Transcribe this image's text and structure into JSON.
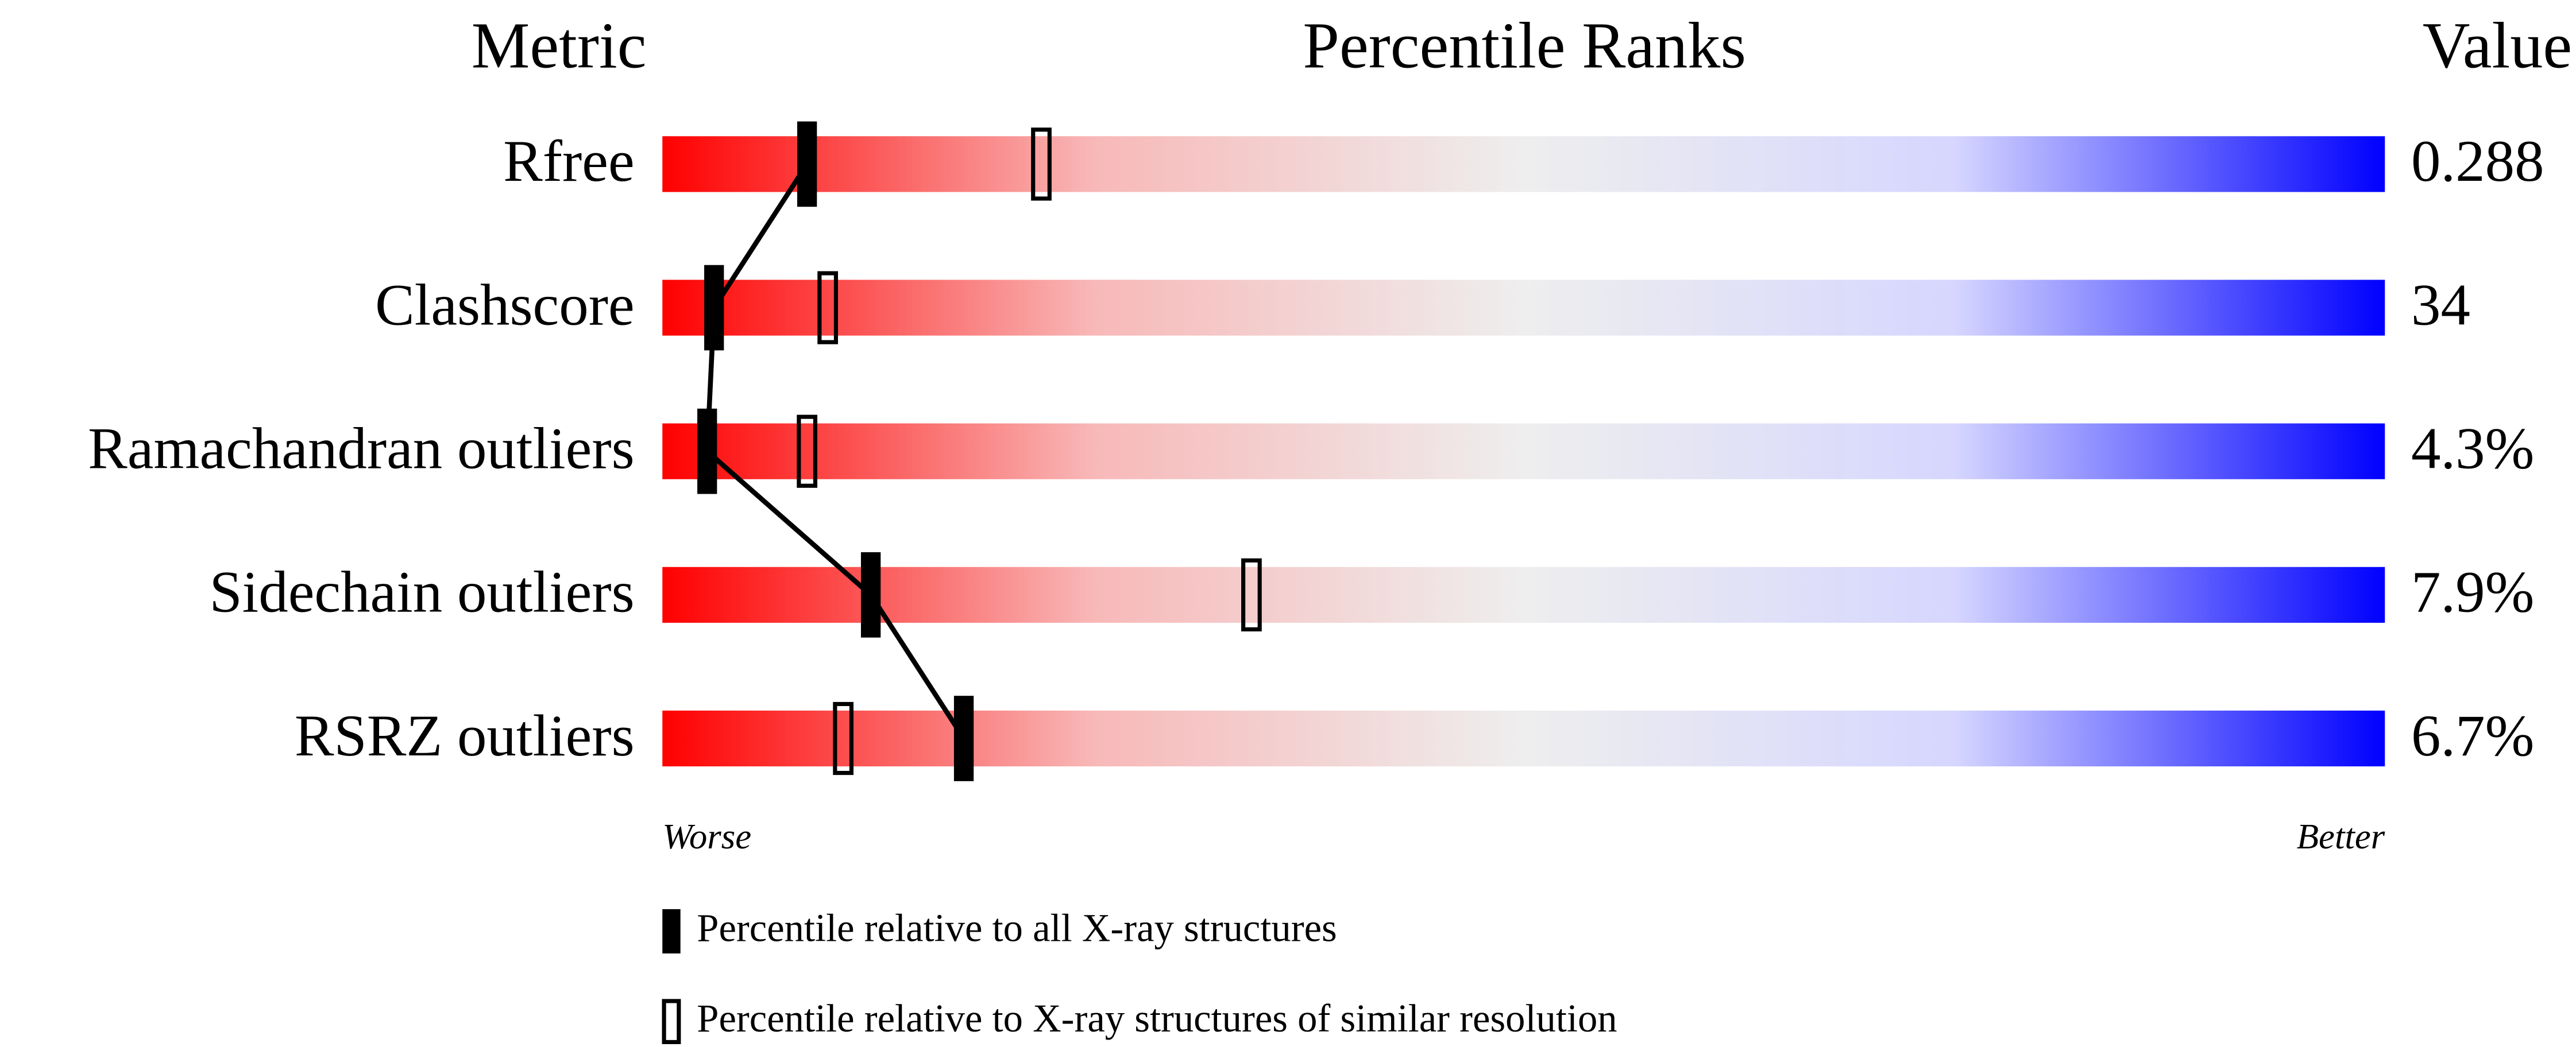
{
  "chart_data": {
    "type": "percentile_slider",
    "header_metric": "Metric",
    "title": "Percentile Ranks",
    "header_value": "Value",
    "categories": [
      "Rfree",
      "Clashscore",
      "Ramachandran outliers",
      "Sidechain outliers",
      "RSRZ outliers"
    ],
    "metric_values": [
      "0.288",
      "34",
      "4.3%",
      "7.9%",
      "6.7%"
    ],
    "xlim": [
      0,
      100
    ],
    "x_label_low": "Worse",
    "x_label_high": "Better",
    "gradient_colors": [
      "#ff0000",
      "#f8b8b8",
      "#eeeeee",
      "#d6d6ff",
      "#0000ff"
    ],
    "series": [
      {
        "name": "Percentile relative to all X-ray structures",
        "color": "#000000",
        "style": "filled",
        "values": [
          8.4,
          3.0,
          2.6,
          12.1,
          17.5
        ]
      },
      {
        "name": "Percentile relative to X-ray structures of similar resolution",
        "color": "#000000",
        "style": "open",
        "values": [
          22.0,
          9.6,
          8.4,
          34.2,
          10.5
        ]
      }
    ]
  }
}
